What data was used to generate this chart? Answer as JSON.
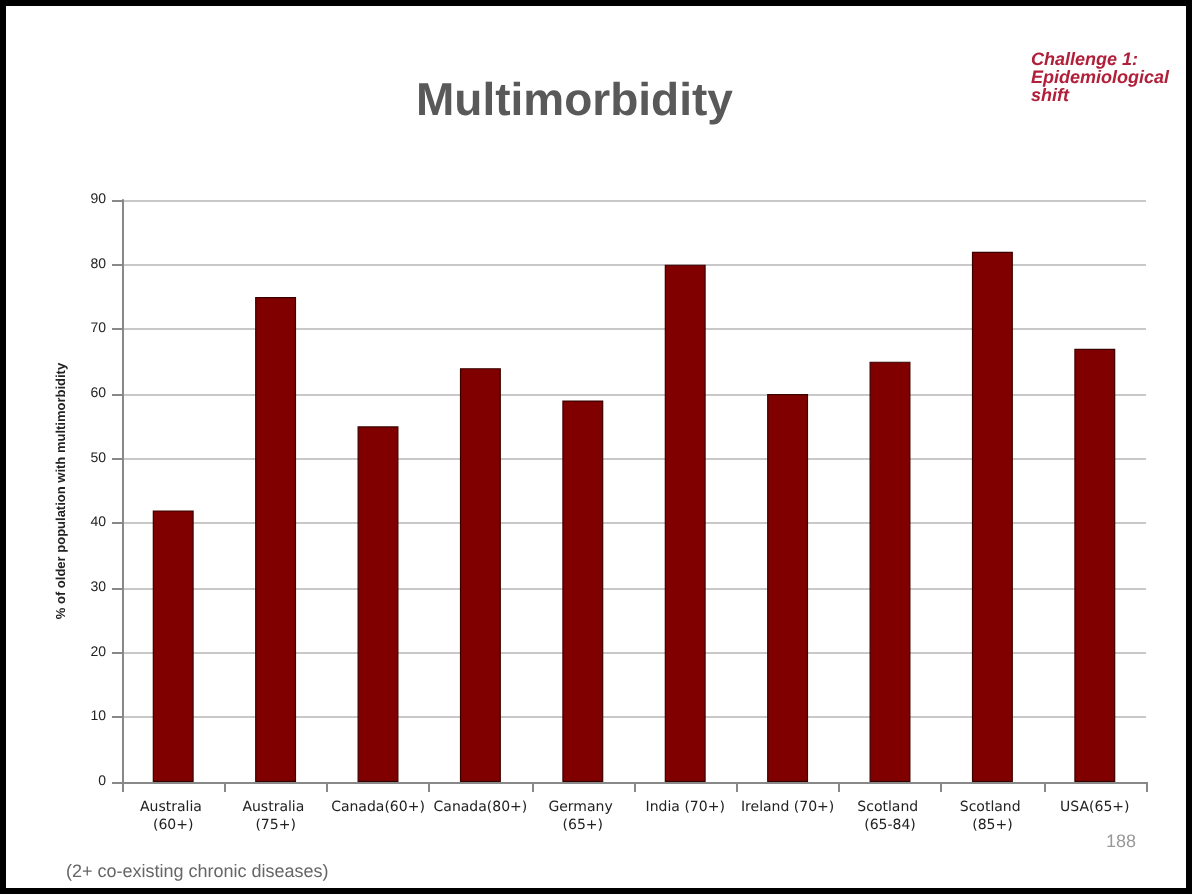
{
  "chart_data": {
    "type": "bar",
    "title": "Multimorbidity",
    "ylabel": "% of older population with multimorbidity",
    "categories": [
      "Australia (60+)",
      "Australia (75+)",
      "Canada(60+)",
      "Canada(80+)",
      "Germany (65+)",
      "India (70+)",
      "Ireland (70+)",
      "Scotland (65-84)",
      "Scotland (85+)",
      "USA(65+)"
    ],
    "values": [
      42,
      75,
      55,
      64,
      59,
      80,
      60,
      65,
      82,
      67
    ],
    "color": "#800000",
    "ylim": [
      0,
      90
    ],
    "yticks": [
      0,
      10,
      20,
      30,
      40,
      50,
      60,
      70,
      80,
      90
    ],
    "grid": "y",
    "annotations": [
      "Challenge 1: Epidemiological shift",
      "(2+ co-existing chronic diseases)",
      "188"
    ]
  }
}
